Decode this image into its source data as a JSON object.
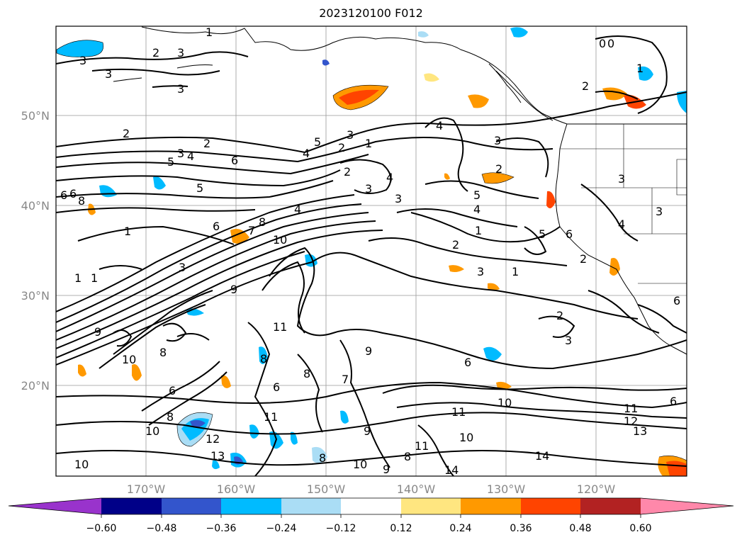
{
  "title": "2023120100 F012",
  "map": {
    "lat_ticks": [
      "50°N",
      "40°N",
      "30°N",
      "20°N"
    ],
    "lon_ticks": [
      "170°W",
      "160°W",
      "150°W",
      "140°W",
      "130°W",
      "120°W"
    ],
    "contour_labels": [
      "1",
      "2",
      "3",
      "4",
      "5",
      "6",
      "7",
      "8",
      "9",
      "10",
      "11",
      "12",
      "13",
      "14"
    ]
  },
  "colorbar": {
    "ticks": [
      "−0.60",
      "−0.48",
      "−0.36",
      "−0.24",
      "−0.12",
      "0.12",
      "0.24",
      "0.36",
      "0.48",
      "0.60"
    ],
    "colors": [
      "#9933cc",
      "#000088",
      "#3355cc",
      "#00bbff",
      "#aaddf5",
      "#ffffff",
      "#ffe680",
      "#ff9900",
      "#ff4400",
      "#b22222",
      "#ff88aa"
    ]
  }
}
